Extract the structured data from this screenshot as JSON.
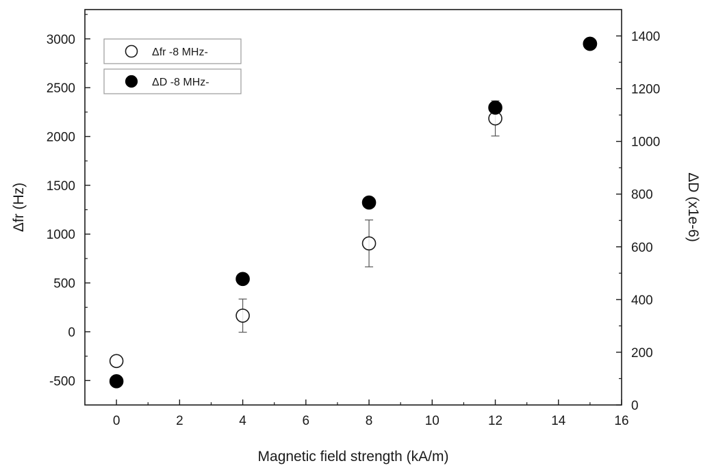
{
  "chart_data": {
    "type": "scatter",
    "title": "",
    "xlabel": "Magnetic field strength (kA/m)",
    "ylabel": "Δfr (Hz)",
    "y2label": "ΔD (x1e-6)",
    "xlim": [
      -1,
      16
    ],
    "ylim": [
      -750,
      3300
    ],
    "y2lim": [
      0,
      1500
    ],
    "xticks": [
      "0",
      "2",
      "4",
      "6",
      "8",
      "10",
      "12",
      "14",
      "16"
    ],
    "yticks": [
      "-500",
      "0",
      "500",
      "1000",
      "1500",
      "2000",
      "2500",
      "3000"
    ],
    "y2ticks": [
      "0",
      "200",
      "400",
      "600",
      "800",
      "1000",
      "1200",
      "1400"
    ],
    "grid": false,
    "legend_position": "top-left",
    "series": [
      {
        "name": "Δfr -8 MHz-",
        "axis": "left",
        "marker": "open-circle",
        "color": "#1a1a1a",
        "x": [
          0,
          4,
          8,
          12,
          15
        ],
        "y": [
          -300,
          165,
          905,
          2185,
          2950
        ],
        "error": [
          null,
          170,
          240,
          180,
          40
        ]
      },
      {
        "name": "ΔD -8 MHz-",
        "axis": "right",
        "marker": "filled-circle",
        "color": "#000000",
        "x": [
          0,
          4,
          8,
          12,
          15
        ],
        "y": [
          90,
          478,
          768,
          1128,
          1370
        ],
        "error": [
          null,
          null,
          null,
          15,
          null
        ]
      }
    ]
  }
}
